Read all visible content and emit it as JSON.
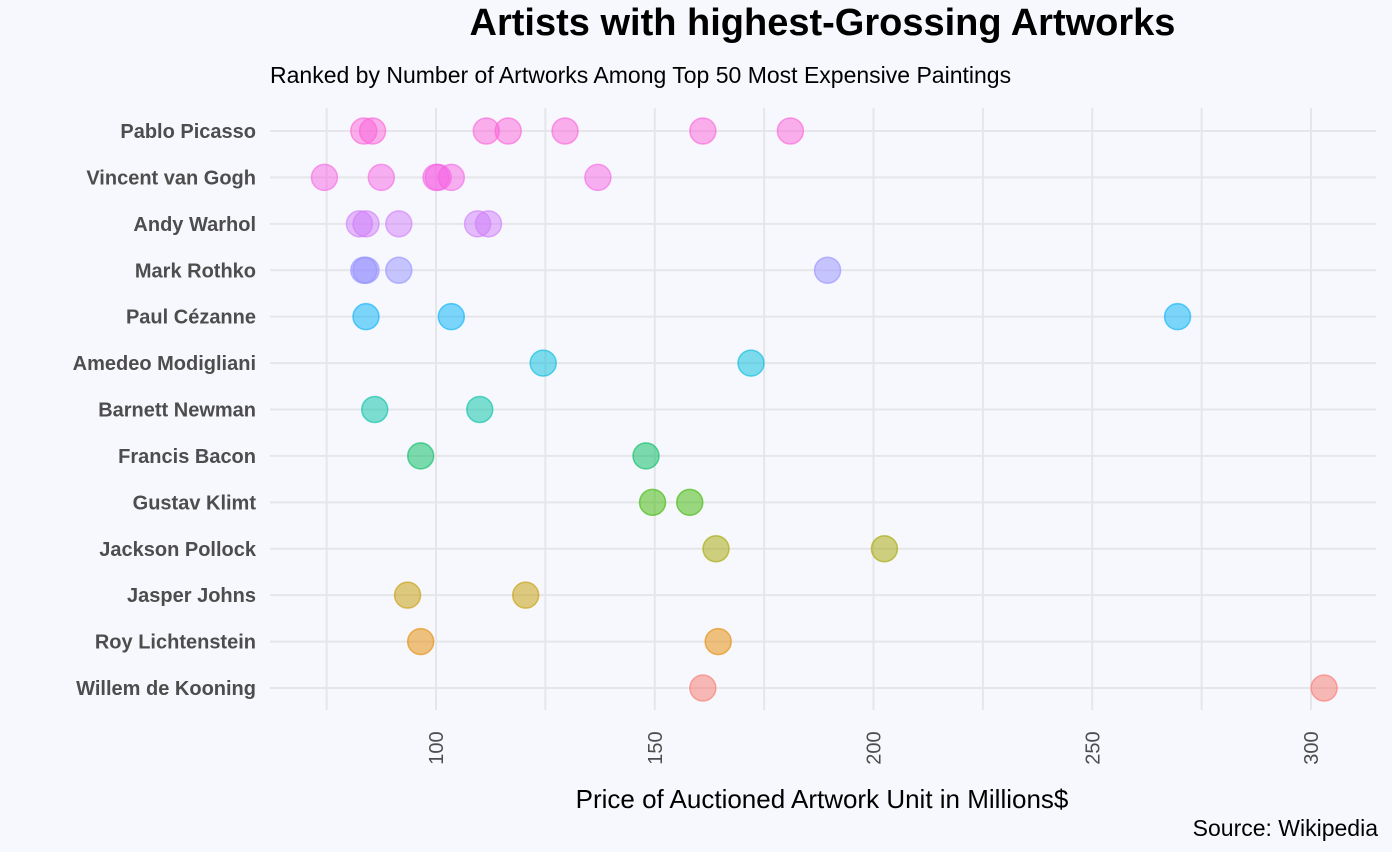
{
  "chart_data": {
    "type": "scatter",
    "title": "Artists with highest-Grossing Artworks",
    "subtitle": "Ranked by Number of Artworks Among Top 50 Most Expensive Paintings",
    "xlabel": "Price of Auctioned Artwork Unit in Millions$",
    "ylabel": "",
    "caption": "Source: Wikipedia",
    "xlim": [
      67,
      315
    ],
    "xticks": [
      100,
      150,
      200,
      250,
      300
    ],
    "grid": true,
    "legend": "none",
    "categories": [
      "Pablo Picasso",
      "Vincent van Gogh",
      "Andy Warhol",
      "Mark Rothko",
      "Paul Cézanne",
      "Amedeo Modigliani",
      "Barnett Newman",
      "Francis Bacon",
      "Gustav Klimt",
      "Jackson Pollock",
      "Jasper Johns",
      "Roy Lichtenstein",
      "Willem de Kooning"
    ],
    "colors": [
      "#fb61d7",
      "#f564e3",
      "#d07cf9",
      "#9590ff",
      "#00b0f6",
      "#00bbdb",
      "#00bfa4",
      "#00ba60",
      "#39b600",
      "#a3a500",
      "#c49a00",
      "#e58700",
      "#f8766d"
    ],
    "series": [
      {
        "values": [
          83.5,
          85.5,
          111.5,
          116.5,
          129.5,
          161,
          181
        ]
      },
      {
        "values": [
          74.5,
          87.5,
          100,
          100.5,
          103.5,
          137
        ]
      },
      {
        "values": [
          82.5,
          84,
          91.5,
          109.5,
          112
        ]
      },
      {
        "values": [
          83.5,
          84,
          91.5,
          189.5
        ]
      },
      {
        "values": [
          84,
          103.5,
          269.5
        ]
      },
      {
        "values": [
          124.5,
          172
        ]
      },
      {
        "values": [
          86,
          110
        ]
      },
      {
        "values": [
          96.5,
          148
        ]
      },
      {
        "values": [
          149.5,
          158
        ]
      },
      {
        "values": [
          164,
          202.5
        ]
      },
      {
        "values": [
          93.5,
          120.5
        ]
      },
      {
        "values": [
          96.5,
          164.5
        ]
      },
      {
        "values": [
          161,
          303
        ]
      }
    ]
  }
}
